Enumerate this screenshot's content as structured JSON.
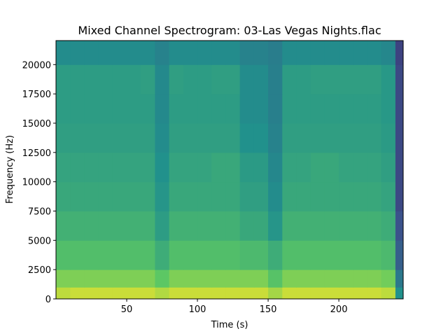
{
  "chart_data": {
    "type": "heatmap",
    "title": "Mixed Channel Spectrogram: 03-Las Vegas Nights.flac",
    "xlabel": "Time (s)",
    "ylabel": "Frequency (Hz)",
    "colormap": "viridis",
    "xlim": [
      0,
      245.5
    ],
    "ylim": [
      0,
      22050
    ],
    "xticks": [
      50,
      100,
      150,
      200
    ],
    "yticks": [
      0,
      2500,
      5000,
      7500,
      10000,
      12500,
      15000,
      17500,
      20000
    ],
    "xbins": [
      0,
      10,
      20,
      30,
      40,
      50,
      60,
      70,
      80,
      90,
      100,
      110,
      120,
      130,
      140,
      150,
      160,
      170,
      180,
      190,
      200,
      210,
      220,
      230,
      240,
      245.5
    ],
    "ybins": [
      0,
      1000,
      2500,
      5000,
      7500,
      10000,
      12500,
      15000,
      17500,
      20000,
      22050
    ],
    "z": [
      [
        0.9,
        0.92,
        0.92,
        0.92,
        0.92,
        0.92,
        0.92,
        0.88,
        0.92,
        0.92,
        0.92,
        0.92,
        0.92,
        0.92,
        0.92,
        0.86,
        0.92,
        0.92,
        0.92,
        0.92,
        0.92,
        0.92,
        0.92,
        0.9,
        0.5
      ],
      [
        0.8,
        0.8,
        0.8,
        0.8,
        0.8,
        0.8,
        0.8,
        0.74,
        0.8,
        0.8,
        0.8,
        0.8,
        0.8,
        0.8,
        0.8,
        0.72,
        0.8,
        0.8,
        0.8,
        0.8,
        0.8,
        0.8,
        0.8,
        0.78,
        0.4
      ],
      [
        0.7,
        0.7,
        0.7,
        0.7,
        0.7,
        0.7,
        0.7,
        0.62,
        0.7,
        0.7,
        0.7,
        0.7,
        0.7,
        0.68,
        0.68,
        0.62,
        0.7,
        0.7,
        0.7,
        0.7,
        0.7,
        0.7,
        0.7,
        0.68,
        0.3
      ],
      [
        0.64,
        0.64,
        0.64,
        0.64,
        0.64,
        0.64,
        0.64,
        0.55,
        0.64,
        0.64,
        0.64,
        0.64,
        0.64,
        0.6,
        0.6,
        0.52,
        0.64,
        0.64,
        0.64,
        0.64,
        0.64,
        0.64,
        0.64,
        0.62,
        0.25
      ],
      [
        0.6,
        0.6,
        0.6,
        0.6,
        0.6,
        0.6,
        0.6,
        0.52,
        0.6,
        0.6,
        0.6,
        0.6,
        0.6,
        0.56,
        0.56,
        0.48,
        0.6,
        0.6,
        0.6,
        0.6,
        0.6,
        0.6,
        0.6,
        0.58,
        0.22
      ],
      [
        0.58,
        0.58,
        0.58,
        0.58,
        0.58,
        0.58,
        0.58,
        0.5,
        0.58,
        0.58,
        0.58,
        0.6,
        0.6,
        0.54,
        0.54,
        0.46,
        0.58,
        0.58,
        0.6,
        0.6,
        0.58,
        0.58,
        0.58,
        0.56,
        0.22
      ],
      [
        0.56,
        0.56,
        0.56,
        0.56,
        0.56,
        0.56,
        0.56,
        0.48,
        0.56,
        0.56,
        0.56,
        0.56,
        0.56,
        0.5,
        0.5,
        0.44,
        0.56,
        0.56,
        0.56,
        0.56,
        0.56,
        0.56,
        0.56,
        0.54,
        0.22
      ],
      [
        0.55,
        0.55,
        0.55,
        0.55,
        0.55,
        0.55,
        0.55,
        0.47,
        0.55,
        0.55,
        0.55,
        0.55,
        0.55,
        0.48,
        0.48,
        0.43,
        0.55,
        0.55,
        0.55,
        0.55,
        0.55,
        0.55,
        0.55,
        0.53,
        0.22
      ],
      [
        0.55,
        0.55,
        0.55,
        0.55,
        0.55,
        0.55,
        0.56,
        0.47,
        0.56,
        0.55,
        0.55,
        0.56,
        0.56,
        0.48,
        0.48,
        0.43,
        0.55,
        0.55,
        0.56,
        0.56,
        0.56,
        0.56,
        0.56,
        0.53,
        0.22
      ],
      [
        0.48,
        0.48,
        0.48,
        0.48,
        0.48,
        0.48,
        0.48,
        0.44,
        0.48,
        0.48,
        0.48,
        0.48,
        0.48,
        0.44,
        0.44,
        0.42,
        0.48,
        0.48,
        0.48,
        0.48,
        0.48,
        0.48,
        0.48,
        0.46,
        0.2
      ]
    ]
  }
}
